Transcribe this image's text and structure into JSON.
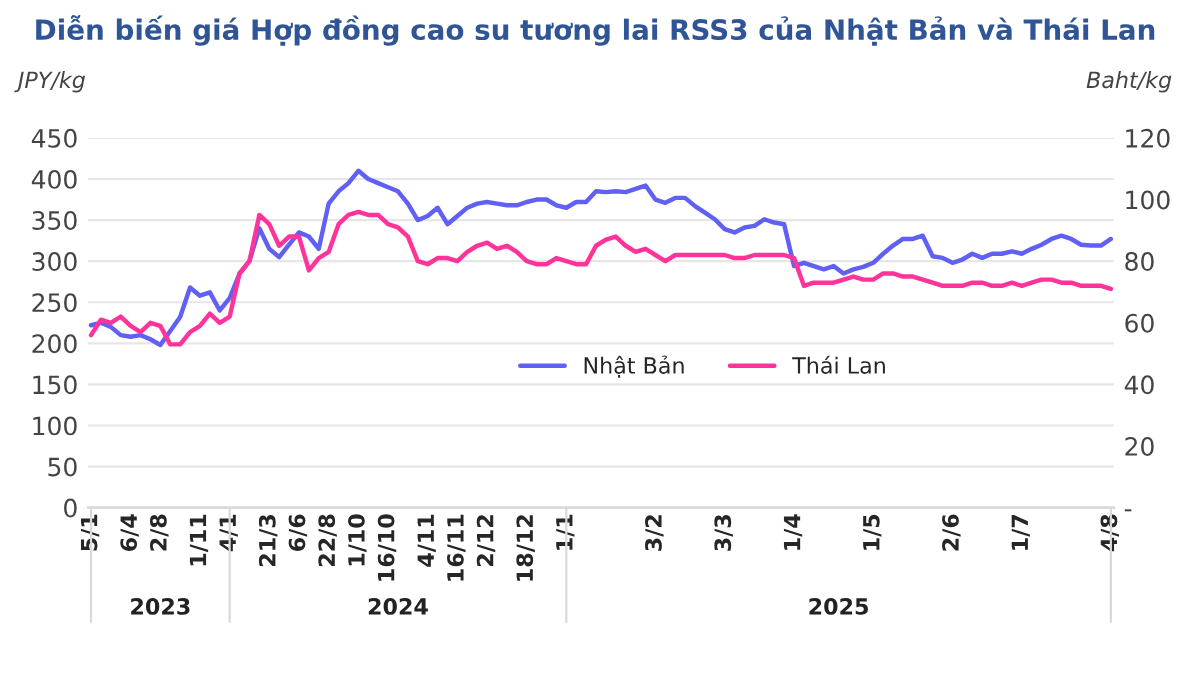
{
  "chart_data": {
    "type": "line",
    "title": "Diễn biến giá Hợp đồng cao su tương lai RSS3 của Nhật Bản và Thái Lan",
    "ylabel": "JPY/kg",
    "y2label": "Baht/kg",
    "categories": [
      "5/1",
      null,
      null,
      null,
      "6/4",
      null,
      null,
      "2/8",
      null,
      null,
      null,
      "1/11",
      null,
      null,
      "4/1",
      null,
      null,
      null,
      "21/3",
      null,
      null,
      "6/6",
      null,
      null,
      "22/8",
      null,
      null,
      "1/10",
      null,
      null,
      "16/10",
      null,
      null,
      null,
      "4/11",
      null,
      null,
      "16/11",
      null,
      null,
      "2/12",
      null,
      null,
      null,
      "18/12",
      null,
      null,
      null,
      "1/1",
      null,
      null,
      null,
      null,
      null,
      null,
      null,
      null,
      "3/2",
      null,
      null,
      null,
      null,
      null,
      null,
      "3/3",
      null,
      null,
      null,
      null,
      null,
      null,
      "1/4",
      null,
      null,
      null,
      null,
      null,
      null,
      null,
      "1/5",
      null,
      null,
      null,
      null,
      null,
      null,
      null,
      "2/6",
      null,
      null,
      null,
      null,
      null,
      null,
      "1/7",
      null,
      null,
      null,
      null,
      null,
      null,
      null,
      null,
      "4/8"
    ],
    "series": [
      {
        "name": "Nhật Bản",
        "color": "#6060f5",
        "values": [
          222,
          225,
          220,
          210,
          208,
          210,
          205,
          198,
          215,
          232,
          268,
          258,
          262,
          240,
          255,
          285,
          300,
          340,
          315,
          305,
          320,
          335,
          330,
          315,
          370,
          385,
          395,
          410,
          400,
          395,
          390,
          385,
          370,
          350,
          355,
          365,
          345,
          355,
          365,
          370,
          372,
          370,
          368,
          368,
          372,
          375,
          375,
          368,
          365,
          372,
          372,
          385,
          384,
          385,
          384,
          388,
          392,
          375,
          371,
          377,
          377,
          367,
          359,
          351,
          339,
          335,
          341,
          343,
          351,
          347,
          345,
          294,
          298,
          294,
          290,
          294,
          285,
          290,
          293,
          298,
          309,
          319,
          327,
          327,
          331,
          306,
          304,
          298,
          302,
          309,
          304,
          309,
          309,
          312,
          309,
          315,
          320,
          327,
          331,
          327,
          320,
          319,
          319,
          327
        ]
      },
      {
        "name": "Thái Lan",
        "color": "#ff3399",
        "axis": "y2",
        "values": [
          56,
          61,
          60,
          62,
          59,
          57,
          60,
          59,
          53,
          53,
          57,
          59,
          63,
          60,
          62,
          76,
          80,
          95,
          92,
          85,
          88,
          88,
          77,
          81,
          83,
          92,
          95,
          96,
          95,
          95,
          92,
          91,
          88,
          80,
          79,
          81,
          81,
          80,
          83,
          85,
          86,
          84,
          85,
          83,
          80,
          79,
          79,
          81,
          80,
          79,
          79,
          85,
          87,
          88,
          85,
          83,
          84,
          82,
          80,
          82,
          82,
          82,
          82,
          82,
          82,
          81,
          81,
          82,
          82,
          82,
          82,
          81,
          72,
          73,
          73,
          73,
          74,
          75,
          74,
          74,
          76,
          76,
          75,
          75,
          74,
          73,
          72,
          72,
          72,
          73,
          73,
          72,
          72,
          73,
          72,
          73,
          74,
          74,
          73,
          73,
          72,
          72,
          72,
          71
        ]
      }
    ],
    "ylim": [
      0,
      450
    ],
    "yticks": [
      0,
      50,
      100,
      150,
      200,
      250,
      300,
      350,
      400,
      450
    ],
    "y2lim": [
      0,
      120
    ],
    "y2ticks": [
      {
        "value": 0,
        "label": "-"
      },
      20,
      40,
      60,
      80,
      100,
      120
    ],
    "grid": "y",
    "legend": "center",
    "marker": "none",
    "line_style": "solid",
    "annotations": [
      "2023",
      "2024",
      "2025"
    ]
  }
}
